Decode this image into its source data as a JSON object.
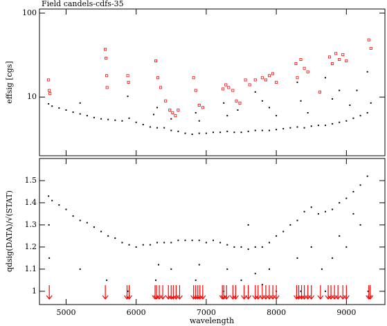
{
  "chart_data": [
    {
      "type": "scatter",
      "title": "Field candels-cdfs-35",
      "y_label": "effsig [cgs]",
      "xlim": [
        4620,
        9550
      ],
      "xticks": [
        5000,
        6000,
        7000,
        8000,
        9000
      ],
      "xtick_labels": false,
      "ylim": [
        2,
        112
      ],
      "ylog": true,
      "yticks": [
        10,
        100
      ],
      "series": [
        {
          "color": "#000000",
          "marker": "dot",
          "x": [
            4750,
            4800,
            4900,
            5000,
            5100,
            5200,
            5300,
            5400,
            5500,
            5600,
            5700,
            5800,
            5900,
            6000,
            6100,
            6200,
            6300,
            6400,
            6500,
            6600,
            6700,
            6800,
            6900,
            7000,
            7100,
            7200,
            7300,
            7400,
            7500,
            7600,
            7700,
            7800,
            7900,
            8000,
            8100,
            8200,
            8300,
            8400,
            8500,
            8600,
            8700,
            8800,
            8900,
            9000,
            9100,
            9200,
            9300,
            9350,
            5200,
            5880,
            6250,
            6300,
            6500,
            6850,
            6900,
            7250,
            7300,
            7450,
            7700,
            7800,
            7900,
            8000,
            8300,
            8350,
            8450,
            8700,
            8800,
            8900,
            9050,
            9300,
            9150
          ],
          "values": [
            8.3,
            7.8,
            7.4,
            7.0,
            6.6,
            6.3,
            6.0,
            5.7,
            5.5,
            5.4,
            5.3,
            5.2,
            5.6,
            5.0,
            4.7,
            4.4,
            4.3,
            4.3,
            4.0,
            3.9,
            3.7,
            3.6,
            3.7,
            3.7,
            3.8,
            3.8,
            3.9,
            3.8,
            3.8,
            3.9,
            4.0,
            4.0,
            4.0,
            4.1,
            4.2,
            4.3,
            4.4,
            4.3,
            4.5,
            4.6,
            4.6,
            4.8,
            5.0,
            5.2,
            5.6,
            6.0,
            6.5,
            8.5,
            8.5,
            10.2,
            6.2,
            7.5,
            5.5,
            6.5,
            5.2,
            8.5,
            6.0,
            7.0,
            11.5,
            9.0,
            7.5,
            6.0,
            15,
            9.0,
            6.5,
            17,
            9.5,
            12,
            8.0,
            20,
            12
          ]
        },
        {
          "color": "#ff0000",
          "marker": "square",
          "x": [
            4750,
            4760,
            4770,
            5560,
            5570,
            5580,
            5585,
            5880,
            5890,
            6280,
            6310,
            6350,
            6420,
            6480,
            6520,
            6560,
            6600,
            6820,
            6850,
            6900,
            6950,
            7240,
            7280,
            7320,
            7380,
            7430,
            7480,
            7560,
            7620,
            7700,
            7800,
            7850,
            7900,
            7950,
            8000,
            8280,
            8300,
            8350,
            8400,
            8450,
            8620,
            8760,
            8800,
            8850,
            8900,
            8950,
            9000,
            9320,
            9350
          ],
          "values": [
            16,
            12,
            11,
            37,
            29,
            18,
            13,
            18,
            15,
            27,
            17,
            13,
            9,
            7,
            6.5,
            6,
            7,
            17,
            12,
            8,
            7.5,
            12.5,
            14,
            13,
            12,
            9,
            8.5,
            16,
            14,
            16,
            17,
            16,
            18,
            19,
            15,
            25,
            17,
            28,
            22,
            20,
            11.5,
            30,
            25,
            33,
            28,
            32,
            27,
            48,
            38
          ]
        }
      ]
    },
    {
      "type": "scatter",
      "x_label": "wavelength",
      "y_label": "qdsig(DATA)/√(STAT)",
      "xlim": [
        4620,
        9550
      ],
      "xticks": [
        5000,
        6000,
        7000,
        8000,
        9000
      ],
      "xtick_labels": true,
      "ylim": [
        0.94,
        1.6
      ],
      "ylog": false,
      "yticks": [
        1,
        1.1,
        1.2,
        1.3,
        1.4,
        1.5
      ],
      "series": [
        {
          "color": "#000000",
          "marker": "dot",
          "x": [
            4750,
            4800,
            4900,
            5000,
            5100,
            5200,
            5300,
            5400,
            5500,
            5600,
            5700,
            5800,
            5900,
            6000,
            6100,
            6200,
            6300,
            6400,
            6500,
            6600,
            6700,
            6800,
            6900,
            7000,
            7100,
            7200,
            7300,
            7400,
            7500,
            7600,
            7700,
            7800,
            7900,
            8000,
            8100,
            8200,
            8300,
            8400,
            8500,
            8600,
            8700,
            8800,
            8900,
            9000,
            9100,
            9200,
            9300,
            4760,
            4755,
            5200,
            5580,
            5880,
            6280,
            6320,
            6500,
            6850,
            6900,
            7250,
            7300,
            7500,
            7600,
            7700,
            7800,
            7900,
            8000,
            8300,
            8350,
            8500,
            8650,
            8700,
            8800,
            8900,
            9000,
            9100,
            9310,
            9200
          ],
          "values": [
            1.43,
            1.41,
            1.39,
            1.37,
            1.34,
            1.32,
            1.31,
            1.29,
            1.27,
            1.25,
            1.24,
            1.22,
            1.21,
            1.2,
            1.21,
            1.21,
            1.22,
            1.22,
            1.22,
            1.23,
            1.23,
            1.23,
            1.23,
            1.22,
            1.23,
            1.22,
            1.21,
            1.2,
            1.2,
            1.19,
            1.2,
            1.2,
            1.22,
            1.25,
            1.27,
            1.3,
            1.32,
            1.36,
            1.38,
            1.35,
            1.36,
            1.37,
            1.4,
            1.42,
            1.45,
            1.48,
            1.52,
            1.15,
            1.3,
            1.1,
            1.05,
            1.0,
            1.05,
            1.12,
            1.1,
            1.05,
            1.12,
            1.0,
            1.1,
            1.05,
            1.3,
            1.08,
            1.03,
            1.1,
            1.0,
            1.15,
            1.0,
            1.2,
            1.1,
            1.0,
            1.15,
            1.25,
            1.2,
            1.35,
            1.0,
            1.3
          ]
        }
      ],
      "flag_color": "#ff0000",
      "flag_x": [
        4760,
        5560,
        5870,
        5900,
        6270,
        6290,
        6330,
        6380,
        6460,
        6500,
        6530,
        6570,
        6620,
        6820,
        6850,
        6880,
        6910,
        6950,
        7230,
        7250,
        7290,
        7380,
        7420,
        7540,
        7600,
        7700,
        7740,
        7800,
        7850,
        7900,
        7950,
        8000,
        8290,
        8320,
        8360,
        8400,
        8450,
        8500,
        8630,
        8740,
        8780,
        8830,
        8880,
        8950,
        9000,
        9320,
        9340
      ]
    }
  ]
}
